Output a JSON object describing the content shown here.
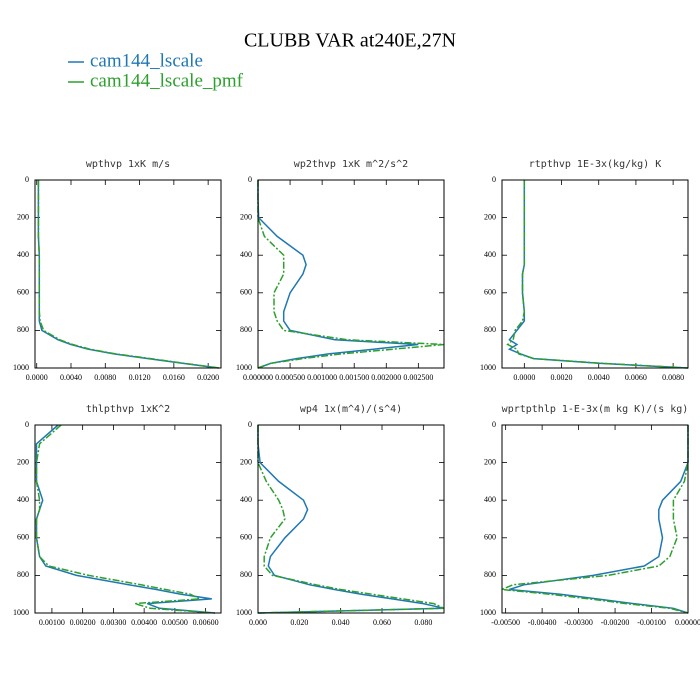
{
  "title": "CLUBB VAR at240E,27N",
  "legend": [
    {
      "name": "cam144_lscale",
      "color": "#1f77b4"
    },
    {
      "name": "cam144_lscale_pmf",
      "color": "#2ca02c"
    }
  ],
  "chart_data": [
    {
      "type": "line",
      "title": "wpthvp  1xK m/s",
      "y": [
        0,
        100,
        200,
        300,
        400,
        450,
        500,
        600,
        700,
        750,
        800,
        850,
        875,
        900,
        925,
        950,
        975,
        1000
      ],
      "series": [
        {
          "values": [
            0.0002,
            0.0002,
            0.0002,
            0.0002,
            0.0003,
            0.0003,
            0.0003,
            0.0003,
            0.0003,
            0.0003,
            0.0006,
            0.0025,
            0.004,
            0.006,
            0.009,
            0.013,
            0.017,
            0.0212
          ]
        },
        {
          "values": [
            0.0002,
            0.0002,
            0.0002,
            0.0002,
            0.0003,
            0.0003,
            0.0003,
            0.0003,
            0.0003,
            0.0004,
            0.0008,
            0.0027,
            0.0042,
            0.0062,
            0.0092,
            0.0133,
            0.0172,
            0.0213
          ]
        }
      ],
      "xlim": [
        -0.0002,
        0.0215
      ],
      "xticks": [
        {
          "value": 0,
          "label": "0.0000"
        },
        {
          "value": 0.004,
          "label": "0.0040"
        },
        {
          "value": 0.008,
          "label": "0.0080"
        },
        {
          "value": 0.012,
          "label": "0.0120"
        },
        {
          "value": 0.016,
          "label": "0.0160"
        },
        {
          "value": 0.02,
          "label": "0.0200"
        }
      ],
      "ylim": [
        1000,
        0
      ],
      "yticks": [
        0,
        200,
        400,
        600,
        800,
        1000
      ]
    },
    {
      "type": "line",
      "title": "wp2thvp  1xK m^2/s^2",
      "y": [
        0,
        100,
        200,
        300,
        400,
        450,
        500,
        600,
        700,
        750,
        800,
        850,
        875,
        900,
        925,
        950,
        975,
        1000
      ],
      "series": [
        {
          "values": [
            0,
            0,
            1e-05,
            0.0003,
            0.0007,
            0.00075,
            0.0007,
            0.0005,
            0.0004,
            0.0004,
            0.0005,
            0.0012,
            0.0025,
            0.0018,
            0.0011,
            0.0006,
            0.0002,
            0
          ]
        },
        {
          "values": [
            0,
            0,
            0,
            0.0001,
            0.0004,
            0.0004,
            0.0004,
            0.00025,
            0.00025,
            0.0003,
            0.0004,
            0.0014,
            0.0029,
            0.0021,
            0.0013,
            0.0007,
            0.0002,
            0
          ]
        }
      ],
      "xlim": [
        0,
        0.0029
      ],
      "xticks": [
        {
          "value": 0,
          "label": "0.000000"
        },
        {
          "value": 0.0005,
          "label": "0.000500"
        },
        {
          "value": 0.001,
          "label": "0.001000"
        },
        {
          "value": 0.0015,
          "label": "0.001500"
        },
        {
          "value": 0.002,
          "label": "0.002000"
        },
        {
          "value": 0.0025,
          "label": "0.002500"
        }
      ],
      "ylim": [
        1000,
        0
      ],
      "yticks": [
        0,
        200,
        400,
        600,
        800,
        1000
      ]
    },
    {
      "type": "line",
      "title": "rtpthvp  1E-3x(kg/kg) K",
      "y": [
        0,
        100,
        200,
        300,
        400,
        450,
        500,
        600,
        700,
        750,
        800,
        850,
        875,
        900,
        925,
        950,
        975,
        1000
      ],
      "series": [
        {
          "values": [
            0,
            0,
            0,
            0,
            0,
            0,
            -0.0001,
            -0.0001,
            0,
            0,
            -0.0004,
            -0.0008,
            -0.0004,
            -0.0008,
            -0.0002,
            0.0005,
            0.004,
            0.0088
          ]
        },
        {
          "values": [
            0,
            0,
            0,
            0,
            0,
            0,
            -0.0001,
            -0.0001,
            0,
            -0.0001,
            -0.0005,
            -0.0006,
            -0.0009,
            -0.0004,
            -0.0003,
            0.0005,
            0.0042,
            0.0088
          ]
        }
      ],
      "xlim": [
        -0.0012,
        0.0088
      ],
      "xticks": [
        {
          "value": 0,
          "label": "0.0000"
        },
        {
          "value": 0.002,
          "label": "0.0020"
        },
        {
          "value": 0.004,
          "label": "0.0040"
        },
        {
          "value": 0.006,
          "label": "0.0060"
        },
        {
          "value": 0.008,
          "label": "0.0080"
        }
      ],
      "ylim": [
        1000,
        0
      ],
      "yticks": [
        0,
        200,
        400,
        600,
        800,
        1000
      ]
    },
    {
      "type": "line",
      "title": "thlpthvp  1xK^2",
      "y": [
        0,
        100,
        200,
        300,
        400,
        450,
        500,
        600,
        700,
        750,
        800,
        850,
        875,
        900,
        925,
        950,
        975,
        1000
      ],
      "series": [
        {
          "values": [
            0.0012,
            0.0005,
            0.0005,
            0.0005,
            0.0007,
            0.0006,
            0.0005,
            0.0005,
            0.0006,
            0.0008,
            0.0018,
            0.0035,
            0.0044,
            0.0052,
            0.0062,
            0.0041,
            0.0045,
            0.0063
          ]
        },
        {
          "values": [
            0.0013,
            0.0006,
            0.0005,
            0.0005,
            0.0006,
            0.0006,
            0.0005,
            0.0005,
            0.0006,
            0.0009,
            0.0022,
            0.0039,
            0.0047,
            0.0055,
            0.0058,
            0.0037,
            0.0042,
            0.0063
          ]
        }
      ],
      "xlim": [
        0.00045,
        0.0065
      ],
      "xticks": [
        {
          "value": 0.001,
          "label": "0.00100"
        },
        {
          "value": 0.002,
          "label": "0.00200"
        },
        {
          "value": 0.003,
          "label": "0.00300"
        },
        {
          "value": 0.004,
          "label": "0.00400"
        },
        {
          "value": 0.005,
          "label": "0.00500"
        },
        {
          "value": 0.006,
          "label": "0.00600"
        }
      ],
      "ylim": [
        1000,
        0
      ],
      "yticks": [
        0,
        200,
        400,
        600,
        800,
        1000
      ]
    },
    {
      "type": "line",
      "title": "wp4  1x(m^4)/(s^4)",
      "y": [
        0,
        100,
        200,
        300,
        400,
        450,
        500,
        600,
        700,
        750,
        800,
        850,
        875,
        900,
        925,
        950,
        975,
        1000
      ],
      "series": [
        {
          "values": [
            0,
            0,
            0.001,
            0.01,
            0.022,
            0.024,
            0.022,
            0.013,
            0.006,
            0.005,
            0.008,
            0.025,
            0.037,
            0.05,
            0.065,
            0.08,
            0.09,
            0
          ]
        },
        {
          "values": [
            0,
            0,
            0,
            0.004,
            0.01,
            0.012,
            0.013,
            0.006,
            0.003,
            0.003,
            0.007,
            0.028,
            0.04,
            0.055,
            0.07,
            0.085,
            0.09,
            0
          ]
        }
      ],
      "xlim": [
        0,
        0.09
      ],
      "xticks": [
        {
          "value": 0,
          "label": "0.000"
        },
        {
          "value": 0.02,
          "label": "0.020"
        },
        {
          "value": 0.04,
          "label": "0.040"
        },
        {
          "value": 0.06,
          "label": "0.060"
        },
        {
          "value": 0.08,
          "label": "0.080"
        }
      ],
      "ylim": [
        1000,
        0
      ],
      "yticks": [
        0,
        200,
        400,
        600,
        800,
        1000
      ]
    },
    {
      "type": "line",
      "title": "wprtpthlp  1-E-3x(m kg K)/(s kg)",
      "y": [
        0,
        100,
        200,
        300,
        400,
        450,
        500,
        600,
        700,
        750,
        800,
        850,
        875,
        900,
        925,
        950,
        975,
        1000
      ],
      "series": [
        {
          "values": [
            0,
            0,
            0,
            -0.0002,
            -0.0007,
            -0.0008,
            -0.0008,
            -0.0007,
            -0.0008,
            -0.0012,
            -0.0026,
            -0.0045,
            -0.0049,
            -0.0035,
            -0.0025,
            -0.0015,
            -0.0004,
            0
          ]
        },
        {
          "values": [
            0,
            0,
            0,
            -0.0001,
            -0.0004,
            -0.0004,
            -0.0004,
            -0.0003,
            -0.0005,
            -0.0008,
            -0.0022,
            -0.0048,
            -0.0051,
            -0.0038,
            -0.0027,
            -0.0017,
            -0.0005,
            0
          ]
        }
      ],
      "xlim": [
        -0.0051,
        0
      ],
      "xticks": [
        {
          "value": -0.005,
          "label": "-0.00500"
        },
        {
          "value": -0.004,
          "label": "-0.00400"
        },
        {
          "value": -0.003,
          "label": "-0.00300"
        },
        {
          "value": -0.002,
          "label": "-0.00200"
        },
        {
          "value": -0.001,
          "label": "-0.00100"
        },
        {
          "value": 0,
          "label": "0.00000"
        }
      ],
      "ylim": [
        1000,
        0
      ],
      "yticks": [
        0,
        200,
        400,
        600,
        800,
        1000
      ]
    }
  ]
}
